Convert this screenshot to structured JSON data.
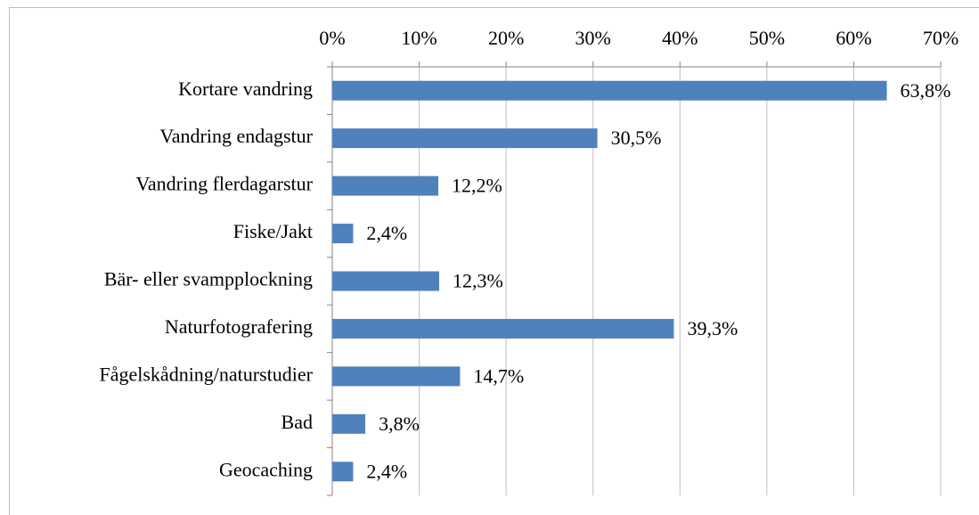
{
  "chart_data": {
    "type": "bar",
    "orientation": "horizontal",
    "categories": [
      "Kortare vandring",
      "Vandring endagstur",
      "Vandring flerdagarstur",
      "Fiske/Jakt",
      "Bär- eller svampplockning",
      "Naturfotografering",
      "Fågelskådning/naturstudier",
      "Bad",
      "Geocaching"
    ],
    "values": [
      63.8,
      30.5,
      12.2,
      2.4,
      12.3,
      39.3,
      14.7,
      3.8,
      2.4
    ],
    "value_labels": [
      "63,8%",
      "30,5%",
      "12,2%",
      "2,4%",
      "12,3%",
      "39,3%",
      "14,7%",
      "3,8%",
      "2,4%"
    ],
    "color": "#4f81bd",
    "xlim": [
      0,
      70
    ],
    "xticks": [
      {
        "value": 0,
        "label": "0%"
      },
      {
        "value": 10,
        "label": "10%"
      },
      {
        "value": 20,
        "label": "20%"
      },
      {
        "value": 30,
        "label": "30%"
      },
      {
        "value": 40,
        "label": "40%"
      },
      {
        "value": 50,
        "label": "50%"
      },
      {
        "value": 60,
        "label": "60%"
      },
      {
        "value": 70,
        "label": "70%"
      }
    ],
    "grid": true
  }
}
